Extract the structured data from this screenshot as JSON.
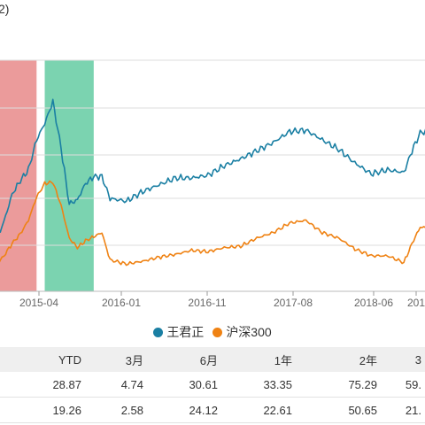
{
  "title_fragment": "2)",
  "legend": [
    {
      "label": "王君正",
      "color": "#1a7fa3"
    },
    {
      "label": "沪深300",
      "color": "#ef8213"
    }
  ],
  "table": {
    "headers": [
      "",
      "YTD",
      "3月",
      "6月",
      "1年",
      "2年",
      "3"
    ],
    "rows": [
      [
        "",
        "28.87",
        "4.74",
        "30.61",
        "33.35",
        "75.29",
        "59."
      ],
      [
        "",
        "19.26",
        "2.58",
        "24.12",
        "22.61",
        "50.65",
        "21."
      ]
    ]
  },
  "chart_data": {
    "type": "line",
    "x_ticks": [
      "2015-04",
      "2016-01",
      "2016-11",
      "2017-08",
      "2018-06",
      "201"
    ],
    "x_range": [
      "2014-10",
      "2019-05"
    ],
    "grid": true,
    "shaded_periods": [
      {
        "start": "2014-10",
        "end": "2015-04",
        "color": "#e47a7a"
      },
      {
        "start": "2015-05",
        "end": "2015-11",
        "color": "#4fc495"
      }
    ],
    "series": [
      {
        "name": "王君正",
        "color": "#1a7fa3",
        "points": [
          [
            "2014-10",
            0.96
          ],
          [
            "2014-12",
            1.24
          ],
          [
            "2015-01",
            1.44
          ],
          [
            "2015-02",
            1.54
          ],
          [
            "2015-03",
            1.62
          ],
          [
            "2015-04",
            1.84
          ],
          [
            "2015-05",
            1.96
          ],
          [
            "2015-06",
            2.12
          ],
          [
            "2015-07",
            1.78
          ],
          [
            "2015-08",
            1.37
          ],
          [
            "2015-09",
            1.4
          ],
          [
            "2015-10",
            1.52
          ],
          [
            "2015-11",
            1.57
          ],
          [
            "2015-12",
            1.57
          ],
          [
            "2016-01",
            1.41
          ],
          [
            "2016-03",
            1.39
          ],
          [
            "2016-05",
            1.46
          ],
          [
            "2016-07",
            1.51
          ],
          [
            "2016-09",
            1.56
          ],
          [
            "2016-11",
            1.56
          ],
          [
            "2017-01",
            1.58
          ],
          [
            "2017-03",
            1.65
          ],
          [
            "2017-05",
            1.7
          ],
          [
            "2017-07",
            1.76
          ],
          [
            "2017-09",
            1.82
          ],
          [
            "2017-11",
            1.9
          ],
          [
            "2018-01",
            1.91
          ],
          [
            "2018-03",
            1.84
          ],
          [
            "2018-05",
            1.77
          ],
          [
            "2018-07",
            1.67
          ],
          [
            "2018-09",
            1.59
          ],
          [
            "2018-11",
            1.62
          ],
          [
            "2019-01",
            1.6
          ],
          [
            "2019-02",
            1.76
          ],
          [
            "2019-03",
            1.89
          ],
          [
            "2019-05",
            1.93
          ]
        ]
      },
      {
        "name": "沪深300",
        "color": "#ef8213",
        "points": [
          [
            "2014-10",
            0.84
          ],
          [
            "2014-12",
            0.99
          ],
          [
            "2015-01",
            1.08
          ],
          [
            "2015-02",
            1.15
          ],
          [
            "2015-03",
            1.25
          ],
          [
            "2015-04",
            1.42
          ],
          [
            "2015-05",
            1.52
          ],
          [
            "2015-06",
            1.53
          ],
          [
            "2015-07",
            1.36
          ],
          [
            "2015-08",
            1.12
          ],
          [
            "2015-09",
            1.05
          ],
          [
            "2015-10",
            1.1
          ],
          [
            "2015-11",
            1.13
          ],
          [
            "2015-12",
            1.16
          ],
          [
            "2016-01",
            0.96
          ],
          [
            "2016-03",
            0.93
          ],
          [
            "2016-05",
            0.95
          ],
          [
            "2016-07",
            0.98
          ],
          [
            "2016-09",
            1.0
          ],
          [
            "2016-11",
            1.03
          ],
          [
            "2017-01",
            1.02
          ],
          [
            "2017-03",
            1.05
          ],
          [
            "2017-05",
            1.06
          ],
          [
            "2017-07",
            1.12
          ],
          [
            "2017-09",
            1.16
          ],
          [
            "2017-11",
            1.23
          ],
          [
            "2018-01",
            1.25
          ],
          [
            "2018-03",
            1.16
          ],
          [
            "2018-05",
            1.12
          ],
          [
            "2018-07",
            1.04
          ],
          [
            "2018-09",
            0.99
          ],
          [
            "2018-11",
            0.99
          ],
          [
            "2019-01",
            0.94
          ],
          [
            "2019-02",
            1.08
          ],
          [
            "2019-03",
            1.2
          ],
          [
            "2019-05",
            1.19
          ]
        ]
      }
    ]
  }
}
